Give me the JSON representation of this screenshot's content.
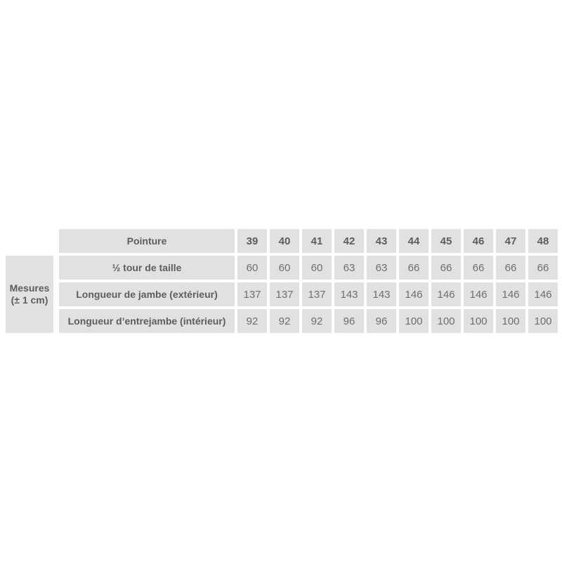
{
  "table": {
    "corner": {
      "line1": "Mesures",
      "line2": "(± 1 cm)"
    },
    "header": {
      "label": "Pointure",
      "sizes": [
        "39",
        "40",
        "41",
        "42",
        "43",
        "44",
        "45",
        "46",
        "47",
        "48"
      ]
    },
    "rows": [
      {
        "label": "½ tour de taille",
        "values": [
          "60",
          "60",
          "60",
          "63",
          "63",
          "66",
          "66",
          "66",
          "66",
          "66"
        ]
      },
      {
        "label": "Longueur de jambe (extérieur)",
        "values": [
          "137",
          "137",
          "137",
          "143",
          "143",
          "146",
          "146",
          "146",
          "146",
          "146"
        ]
      },
      {
        "label": "Longueur d’entrejambe (intérieur)",
        "values": [
          "92",
          "92",
          "92",
          "96",
          "96",
          "100",
          "100",
          "100",
          "100",
          "100"
        ]
      }
    ],
    "colors": {
      "cell_bg": "#e2e1e0",
      "label_text": "#5d5d5f",
      "value_text": "#6e6e6e",
      "page_bg": "#ffffff"
    }
  }
}
